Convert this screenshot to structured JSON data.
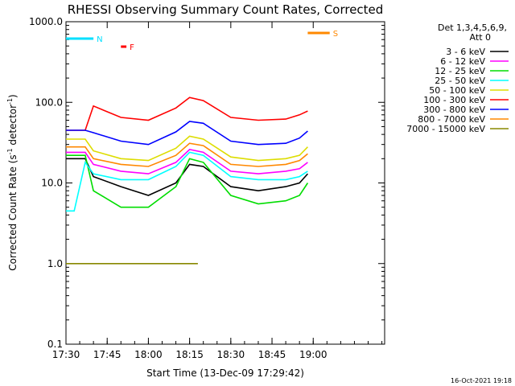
{
  "chart_data": {
    "type": "line",
    "title": "RHESSI Observing Summary Count Rates, Corrected",
    "xlabel": "Start Time (13-Dec-09 17:29:42)",
    "ylabel_main": "Corrected Count Rate (s",
    "ylabel_sup1": "-1",
    "ylabel_mid": " detector",
    "ylabel_sup2": "-1",
    "ylabel_end": ")",
    "y_scale": "log",
    "ylim": [
      0.1,
      1000.0
    ],
    "xlim_minutes": [
      0,
      116
    ],
    "x_ticks": [
      {
        "t": 0,
        "label": "17:30"
      },
      {
        "t": 15,
        "label": "17:45"
      },
      {
        "t": 30,
        "label": "18:00"
      },
      {
        "t": 45,
        "label": "18:15"
      },
      {
        "t": 60,
        "label": "18:30"
      },
      {
        "t": 75,
        "label": "18:45"
      },
      {
        "t": 90,
        "label": "19:00"
      }
    ],
    "y_ticks": [
      {
        "v": 1000,
        "label": "1000.0"
      },
      {
        "v": 100,
        "label": "100.0"
      },
      {
        "v": 10,
        "label": "10.0"
      },
      {
        "v": 1,
        "label": "1.0"
      },
      {
        "v": 0.1,
        "label": "0.1"
      }
    ],
    "legend_header": [
      "Det 1,3,4,5,6,9,",
      "Att 0"
    ],
    "legend_placement": "right",
    "timestamp": "16-Oct-2021 19:18",
    "series": [
      {
        "name": "3 - 6 keV",
        "color": "#000000",
        "x": [
          0,
          7,
          10,
          20,
          30,
          40,
          45,
          50,
          60,
          70,
          80,
          85,
          88
        ],
        "y": [
          20,
          20,
          12,
          9,
          7,
          10,
          17,
          16,
          9,
          8,
          9,
          10,
          13
        ]
      },
      {
        "name": "6 - 12 keV",
        "color": "#ff00ff",
        "x": [
          0,
          7,
          10,
          20,
          30,
          40,
          45,
          50,
          60,
          70,
          80,
          85,
          88
        ],
        "y": [
          24,
          24,
          17,
          14,
          13,
          18,
          26,
          24,
          14,
          13,
          14,
          15,
          18
        ]
      },
      {
        "name": "12 - 25 keV",
        "color": "#00dd00",
        "x": [
          0,
          7,
          10,
          20,
          30,
          40,
          45,
          50,
          60,
          70,
          80,
          85,
          88
        ],
        "y": [
          22,
          22,
          8,
          5,
          5,
          9,
          20,
          18,
          7,
          5.5,
          6,
          7,
          10
        ]
      },
      {
        "name": "25 - 50 keV",
        "color": "#00ffff",
        "x": [
          0,
          3,
          7,
          10,
          20,
          30,
          40,
          45,
          50,
          60,
          70,
          80,
          85,
          88
        ],
        "y": [
          4.5,
          4.5,
          18,
          13,
          11,
          11,
          16,
          24,
          22,
          12,
          11,
          11,
          12,
          14
        ]
      },
      {
        "name": "50 - 100 keV",
        "color": "#dddd00",
        "x": [
          0,
          7,
          10,
          20,
          30,
          40,
          45,
          50,
          60,
          70,
          80,
          85,
          88
        ],
        "y": [
          35,
          35,
          25,
          20,
          19,
          27,
          38,
          35,
          21,
          19,
          20,
          22,
          28
        ]
      },
      {
        "name": "100 - 300 keV",
        "color": "#ff0000",
        "x": [
          0,
          7,
          10,
          20,
          30,
          40,
          45,
          50,
          60,
          70,
          80,
          85,
          88
        ],
        "y": [
          45,
          45,
          90,
          65,
          60,
          85,
          115,
          105,
          65,
          60,
          62,
          70,
          78
        ]
      },
      {
        "name": "300 - 800 keV",
        "color": "#0000ff",
        "x": [
          0,
          7,
          10,
          20,
          30,
          40,
          45,
          50,
          60,
          70,
          80,
          85,
          88
        ],
        "y": [
          45,
          45,
          42,
          33,
          30,
          43,
          58,
          55,
          33,
          30,
          31,
          36,
          44
        ]
      },
      {
        "name": "800 - 7000 keV",
        "color": "#ff8800",
        "x": [
          0,
          7,
          10,
          20,
          30,
          40,
          45,
          50,
          60,
          70,
          80,
          85,
          88
        ],
        "y": [
          28,
          28,
          20,
          17,
          16,
          22,
          31,
          29,
          17,
          16,
          17,
          19,
          23
        ]
      },
      {
        "name": "7000 - 15000 keV",
        "color": "#888800",
        "x": [
          0,
          5,
          40,
          48
        ],
        "y": [
          1.0,
          1.0,
          1.0,
          1.0
        ]
      }
    ],
    "flags": [
      {
        "label": "N",
        "color": "#00e0ff",
        "start": 0,
        "end": 10
      },
      {
        "label": "F",
        "color": "#ff0000",
        "start": 20,
        "end": 22
      },
      {
        "label": "S",
        "color": "#ff8800",
        "start": 88,
        "end": 96
      }
    ]
  }
}
